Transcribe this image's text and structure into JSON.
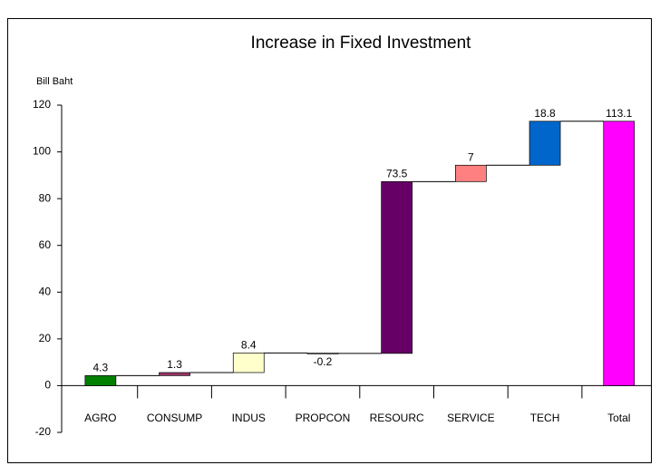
{
  "chart_data": {
    "type": "waterfall",
    "title": "Increase in Fixed Investment",
    "y_axis_label": "Bill Baht",
    "categories": [
      "AGRO",
      "CONSUMP",
      "INDUS",
      "PROPCON",
      "RESOURC",
      "SERVICE",
      "TECH",
      "Total"
    ],
    "values": [
      4.3,
      1.3,
      8.4,
      -0.2,
      73.5,
      7,
      18.8,
      113.1
    ],
    "colors": [
      "#008000",
      "#993366",
      "#ffffcc",
      "#ffffff",
      "#660066",
      "#ff8080",
      "#0066cc",
      "#ff00ff"
    ],
    "total_index": 7,
    "ylim": [
      -20,
      120
    ],
    "yticks": [
      -20,
      0,
      20,
      40,
      60,
      80,
      100,
      120
    ],
    "grid": false
  }
}
